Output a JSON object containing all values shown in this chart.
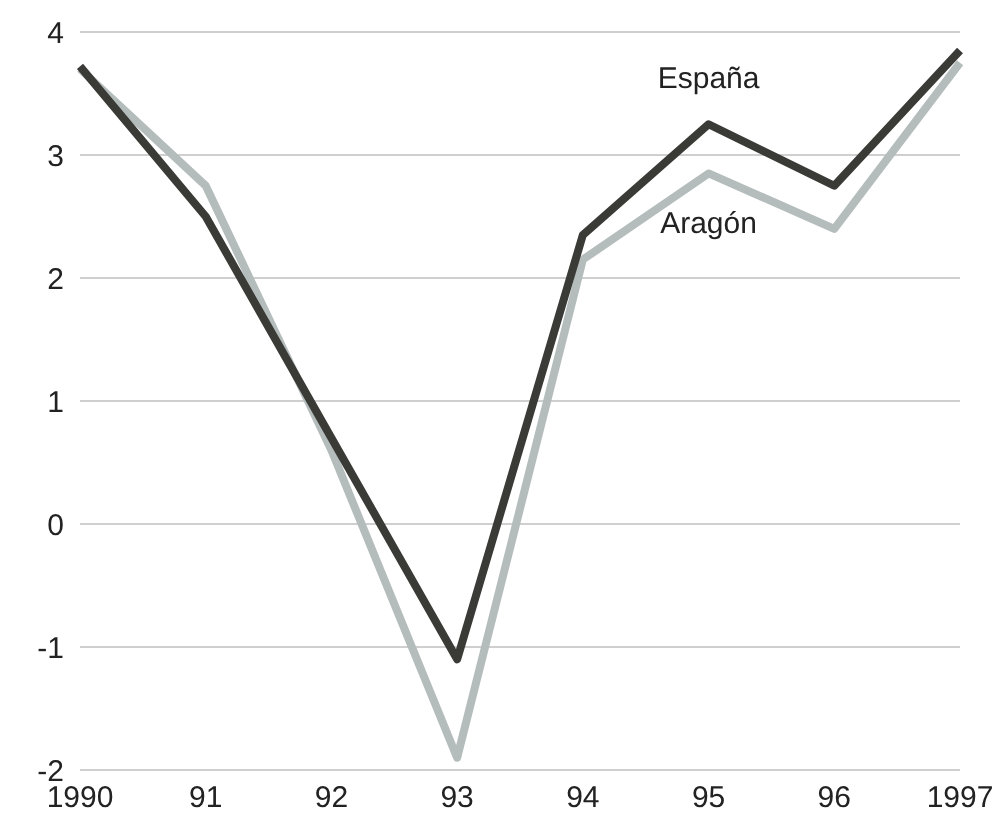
{
  "chart_data": {
    "type": "line",
    "categories": [
      "1990",
      "91",
      "92",
      "93",
      "94",
      "95",
      "96",
      "1997"
    ],
    "series": [
      {
        "name": "Aragón",
        "color": "#b4bcbc",
        "values": [
          3.7,
          2.75,
          0.6,
          -1.9,
          2.15,
          2.85,
          2.4,
          3.75
        ]
      },
      {
        "name": "España",
        "color": "#3a3a36",
        "values": [
          3.72,
          2.5,
          0.7,
          -1.1,
          2.35,
          3.25,
          2.75,
          3.85
        ]
      }
    ],
    "ylim": [
      -2,
      4
    ],
    "yticks": [
      -2,
      -1,
      0,
      1,
      2,
      3,
      4
    ],
    "grid": "y",
    "legend": false,
    "marker": "none",
    "line_style": "solid"
  }
}
